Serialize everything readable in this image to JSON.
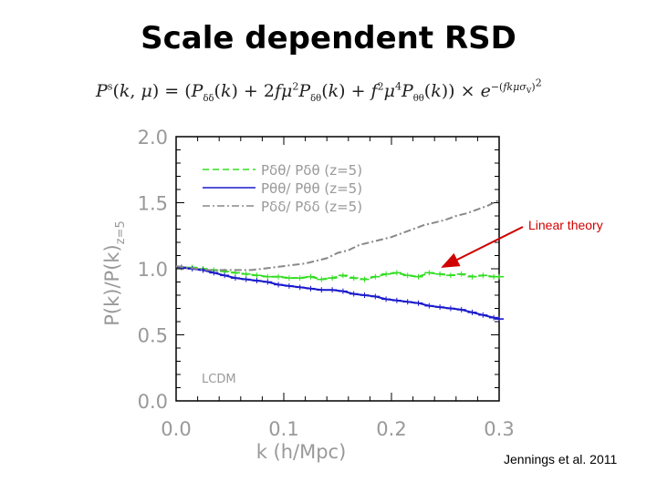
{
  "slide": {
    "title": "Scale dependent RSD",
    "equation_text": "P^s(k,μ) = (P_δδ(k) + 2fμ² P_δθ(k) + f²μ⁴ P_θθ(k)) × e^-(fkμσ_v)²"
  },
  "annotation": {
    "linear_theory": "Linear theory",
    "citation": "Jennings et al. 2011",
    "arrow_color": "#d00000"
  },
  "chart_data": {
    "type": "line",
    "xlabel": "k (h/Mpc)",
    "ylabel": "P(k)/P(k)z=5",
    "ylabel_main": "P(k)/P(k)",
    "ylabel_sub": "z=5",
    "xlim": [
      0.0,
      0.3
    ],
    "ylim": [
      0.0,
      2.0
    ],
    "xticks": [
      "0.0",
      "0.1",
      "0.2",
      "0.3"
    ],
    "yticks": [
      "0.0",
      "0.5",
      "1.0",
      "1.5",
      "2.0"
    ],
    "legend_placement": "top-left",
    "in_plot_label": "LCDM",
    "series": [
      {
        "name": "Pδθ/ Pδθ (z=5)",
        "legend_main": "Pδθ/ Pδθ",
        "legend_suffix": "(z=5)",
        "color": "#33dd22",
        "style": "dashed",
        "x": [
          0.005,
          0.015,
          0.025,
          0.035,
          0.045,
          0.055,
          0.065,
          0.075,
          0.085,
          0.095,
          0.105,
          0.115,
          0.125,
          0.135,
          0.145,
          0.155,
          0.165,
          0.175,
          0.185,
          0.195,
          0.205,
          0.215,
          0.225,
          0.235,
          0.245,
          0.255,
          0.265,
          0.275,
          0.285,
          0.295,
          0.3
        ],
        "y": [
          1.01,
          1.01,
          1.0,
          0.99,
          0.98,
          0.97,
          0.96,
          0.95,
          0.94,
          0.94,
          0.93,
          0.93,
          0.94,
          0.92,
          0.93,
          0.95,
          0.93,
          0.92,
          0.94,
          0.96,
          0.97,
          0.95,
          0.94,
          0.97,
          0.96,
          0.95,
          0.96,
          0.94,
          0.95,
          0.94,
          0.94
        ]
      },
      {
        "name": "Pθθ/ Pθθ (z=5)",
        "legend_main": "Pθθ/ Pθθ",
        "legend_suffix": "(z=5)",
        "color": "#1a1acc",
        "style": "solid",
        "x": [
          0.005,
          0.015,
          0.025,
          0.035,
          0.045,
          0.055,
          0.065,
          0.075,
          0.085,
          0.095,
          0.105,
          0.115,
          0.125,
          0.135,
          0.145,
          0.155,
          0.165,
          0.175,
          0.185,
          0.195,
          0.205,
          0.215,
          0.225,
          0.235,
          0.245,
          0.255,
          0.265,
          0.275,
          0.285,
          0.295,
          0.3
        ],
        "y": [
          1.01,
          1.0,
          0.99,
          0.97,
          0.95,
          0.93,
          0.92,
          0.91,
          0.9,
          0.88,
          0.87,
          0.86,
          0.85,
          0.84,
          0.84,
          0.83,
          0.81,
          0.8,
          0.79,
          0.77,
          0.76,
          0.75,
          0.74,
          0.72,
          0.71,
          0.7,
          0.69,
          0.67,
          0.65,
          0.63,
          0.62
        ]
      },
      {
        "name": "Pδδ/ Pδδ (z=5)",
        "legend_main": "Pδδ/ Pδδ",
        "legend_suffix": "(z=5)",
        "color": "#888888",
        "style": "dash-dot",
        "x": [
          0.0,
          0.01,
          0.02,
          0.03,
          0.04,
          0.05,
          0.06,
          0.07,
          0.08,
          0.09,
          0.1,
          0.11,
          0.12,
          0.13,
          0.14,
          0.15,
          0.16,
          0.17,
          0.18,
          0.19,
          0.2,
          0.21,
          0.22,
          0.23,
          0.24,
          0.25,
          0.26,
          0.27,
          0.28,
          0.29,
          0.3
        ],
        "y": [
          1.02,
          1.01,
          1.0,
          0.99,
          0.99,
          0.99,
          0.99,
          0.99,
          1.0,
          1.01,
          1.02,
          1.03,
          1.04,
          1.06,
          1.08,
          1.12,
          1.14,
          1.18,
          1.2,
          1.22,
          1.24,
          1.27,
          1.3,
          1.33,
          1.35,
          1.37,
          1.4,
          1.42,
          1.45,
          1.48,
          1.52
        ]
      }
    ]
  }
}
